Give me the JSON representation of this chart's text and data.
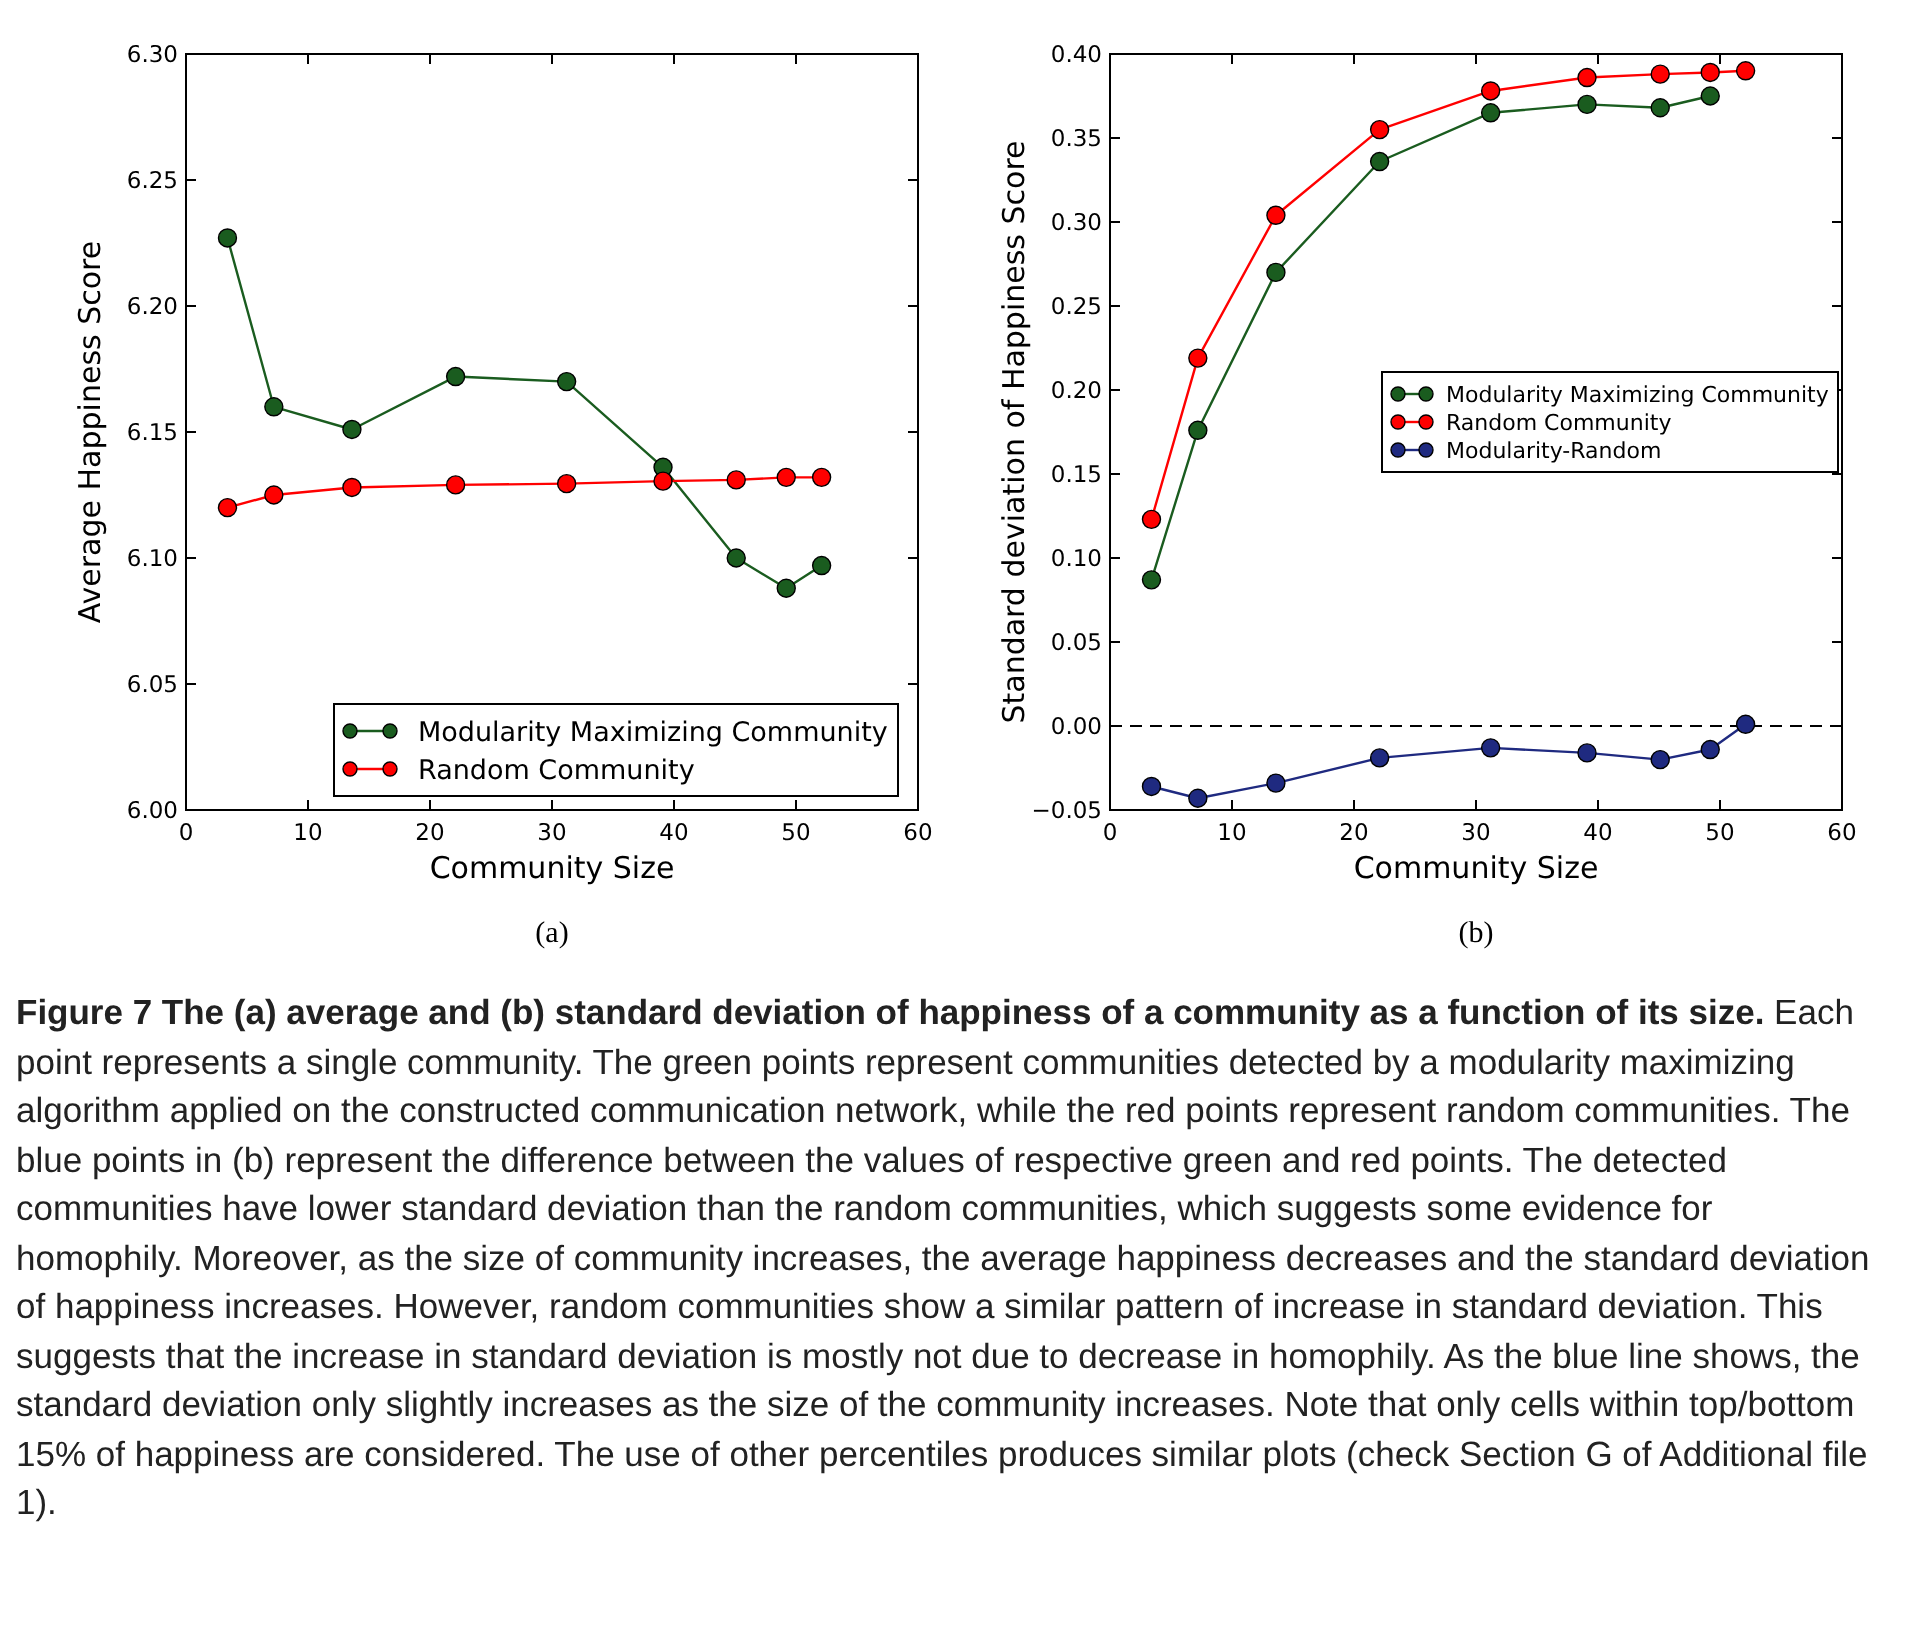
{
  "chart_data": [
    {
      "type": "line",
      "xlabel": "Community Size",
      "ylabel": "Average Happiness Score",
      "marker": "circle",
      "legend": "bottom right",
      "grid": false,
      "x": [
        3.4,
        7.2,
        13.6,
        22.1,
        31.2,
        39.1,
        45.1,
        49.2,
        52.1
      ],
      "xlim": [
        0,
        60
      ],
      "xticks": [
        0,
        10,
        20,
        30,
        40,
        50,
        60
      ],
      "ylim": [
        6.0,
        6.3
      ],
      "yticks": [
        {
          "value": 6.0,
          "label": "6.00"
        },
        {
          "value": 6.05,
          "label": "6.05"
        },
        {
          "value": 6.1,
          "label": "6.10"
        },
        {
          "value": 6.15,
          "label": "6.15"
        },
        {
          "value": 6.2,
          "label": "6.20"
        },
        {
          "value": 6.25,
          "label": "6.25"
        },
        {
          "value": 6.3,
          "label": "6.30"
        }
      ],
      "series": [
        {
          "name": "Modularity Maximizing Community",
          "color": "#1a5c1f",
          "values": [
            6.227,
            6.16,
            6.151,
            6.172,
            6.17,
            6.136,
            6.1,
            6.088,
            6.097
          ]
        },
        {
          "name": "Random Community",
          "color": "#ff0000",
          "values": [
            6.12,
            6.125,
            6.128,
            6.129,
            6.1295,
            6.1305,
            6.131,
            6.132,
            6.132
          ]
        }
      ],
      "annotations": [
        "(a)"
      ]
    },
    {
      "type": "line",
      "xlabel": "Community Size",
      "ylabel": "Standard deviation of Happiness Score",
      "marker": "circle",
      "legend": "center right",
      "grid": false,
      "x": [
        3.4,
        7.2,
        13.6,
        22.1,
        31.2,
        39.1,
        45.1,
        49.2,
        52.1
      ],
      "xlim": [
        0,
        60
      ],
      "xticks": [
        0,
        10,
        20,
        30,
        40,
        50,
        60
      ],
      "ylim": [
        -0.05,
        0.4
      ],
      "yticks": [
        {
          "value": -0.05,
          "label": "−0.05"
        },
        {
          "value": 0,
          "label": "0.00"
        },
        {
          "value": 0.05,
          "label": "0.05"
        },
        {
          "value": 0.1,
          "label": "0.10"
        },
        {
          "value": 0.15,
          "label": "0.15"
        },
        {
          "value": 0.2,
          "label": "0.20"
        },
        {
          "value": 0.25,
          "label": "0.25"
        },
        {
          "value": 0.3,
          "label": "0.30"
        },
        {
          "value": 0.35,
          "label": "0.35"
        },
        {
          "value": 0.4,
          "label": "0.40"
        }
      ],
      "ref_lines": [
        {
          "axis": "y",
          "value": 0,
          "color": "#000000",
          "line_style": "dashed"
        }
      ],
      "series": [
        {
          "name": "Modularity Maximizing Community",
          "color": "#1a5c1f",
          "values": [
            0.087,
            0.176,
            0.27,
            0.336,
            0.365,
            0.37,
            0.368,
            0.375,
            null
          ]
        },
        {
          "name": "Random Community",
          "color": "#ff0000",
          "values": [
            0.123,
            0.219,
            0.304,
            0.355,
            0.378,
            0.386,
            0.388,
            0.389,
            0.39
          ]
        },
        {
          "name": "Modularity-Random",
          "color": "#1f2a80",
          "values": [
            -0.036,
            -0.043,
            -0.034,
            -0.019,
            -0.013,
            -0.016,
            -0.02,
            -0.014,
            0.001
          ]
        }
      ],
      "annotations": [
        "(b)"
      ]
    },
    {
      "type": "other",
      "title": "Figure 7  The (a) average and (b) standard deviation of happiness of a community as a function of its size.",
      "annotations": [
        "Each point represents a single community. The green points represent communities detected by a modularity maximizing algorithm applied on the constructed communication network, while the red points represent random communities. The blue points in (b) represent the difference between the values of respective green and red points. The detected communities have lower standard deviation than the random communities, which suggests some evidence for homophily. Moreover, as the size of community increases, the average happiness decreases and the standard deviation of happiness increases. However, random communities show a similar pattern of increase in standard deviation. This suggests that the increase in standard deviation is mostly not due to decrease in homophily. As the blue line shows, the standard deviation only slightly increases as the size of the community increases. Note that only cells within top/bottom 15% of happiness are considered. The use of other percentiles produces similar plots (check Section G of Additional file 1)."
      ]
    }
  ]
}
